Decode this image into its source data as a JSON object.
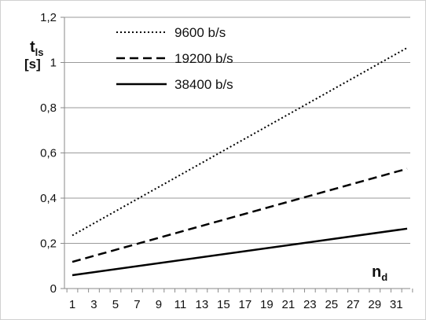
{
  "chart_data": {
    "type": "line",
    "title": "",
    "x": [
      1,
      2,
      3,
      4,
      5,
      6,
      7,
      8,
      9,
      10,
      11,
      12,
      13,
      14,
      15,
      16,
      17,
      18,
      19,
      20,
      21,
      22,
      23,
      24,
      25,
      26,
      27,
      28,
      29,
      30,
      31,
      32
    ],
    "x_tick_labels": [
      "1",
      "3",
      "5",
      "7",
      "9",
      "11",
      "13",
      "15",
      "17",
      "19",
      "21",
      "23",
      "25",
      "27",
      "29",
      "31"
    ],
    "y_tick_labels": [
      "0",
      "0,2",
      "0,4",
      "0,6",
      "0,8",
      "1",
      "1,2"
    ],
    "ylim": [
      0,
      1.2
    ],
    "xlabel": {
      "main": "n",
      "sub": "d"
    },
    "ylabel": {
      "main": "t",
      "sub": "ls",
      "unit": "[s]"
    },
    "grid": "horizontal",
    "legend_position": "top-left",
    "series": [
      {
        "name": "9600 b/s",
        "style": "dotted",
        "color": "#000000",
        "start": 0.235,
        "end": 1.065
      },
      {
        "name": "19200 b/s",
        "style": "dashed",
        "color": "#000000",
        "start": 0.118,
        "end": 0.53
      },
      {
        "name": "38400 b/s",
        "style": "solid",
        "color": "#000000",
        "start": 0.059,
        "end": 0.265
      }
    ]
  }
}
